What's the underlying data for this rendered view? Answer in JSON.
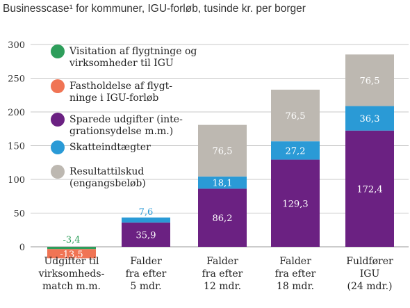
{
  "chart_data": {
    "type": "bar",
    "stacked": true,
    "title": "Businesscase¹ for kommuner, IGU-forløb, tusinde kr. per borger",
    "xlabel": "",
    "ylabel": "",
    "ylim": [
      -20,
      300
    ],
    "yticks": [
      0,
      50,
      100,
      150,
      200,
      250,
      300
    ],
    "grid": true,
    "legend_position": "top-left",
    "categories": [
      [
        "Udgifter til",
        "virksomheds-",
        "match m.m."
      ],
      [
        "Falder",
        "fra efter",
        "5 mdr."
      ],
      [
        "Falder",
        "fra efter",
        "12 mdr."
      ],
      [
        "Falder",
        "fra efter",
        "18 mdr."
      ],
      [
        "Fuldfører",
        "IGU",
        "(24 mdr.)"
      ]
    ],
    "series": [
      {
        "name": [
          "Visitation af flygtninge og",
          "virksomheder til IGU"
        ],
        "color": "#2e9e5b",
        "values": [
          -3.4,
          null,
          null,
          null,
          null
        ],
        "labels": [
          "-3,4",
          "",
          "",
          "",
          ""
        ]
      },
      {
        "name": [
          "Fastholdelse af flygt-",
          "ninge i IGU-forløb"
        ],
        "color": "#f07454",
        "values": [
          -13.5,
          null,
          null,
          null,
          null
        ],
        "labels": [
          "-13,5",
          "",
          "",
          "",
          ""
        ]
      },
      {
        "name": [
          "Sparede udgifter (inte-",
          "grationsydelse m.m.)"
        ],
        "color": "#6b2182",
        "values": [
          null,
          35.9,
          86.2,
          129.3,
          172.4
        ],
        "labels": [
          "",
          "35,9",
          "86,2",
          "129,3",
          "172,4"
        ]
      },
      {
        "name": [
          "Skatteindtægter"
        ],
        "color": "#2a9ad6",
        "values": [
          null,
          7.6,
          18.1,
          27.2,
          36.3
        ],
        "labels": [
          "",
          "7,6",
          "18,1",
          "27,2",
          "36,3"
        ]
      },
      {
        "name": [
          "Resultattilskud",
          "(engangsbeløb)"
        ],
        "color": "#bdb8b1",
        "values": [
          null,
          0,
          76.5,
          76.5,
          76.5
        ],
        "labels": [
          "",
          "",
          "76,5",
          "76,5",
          "76,5"
        ]
      }
    ]
  }
}
